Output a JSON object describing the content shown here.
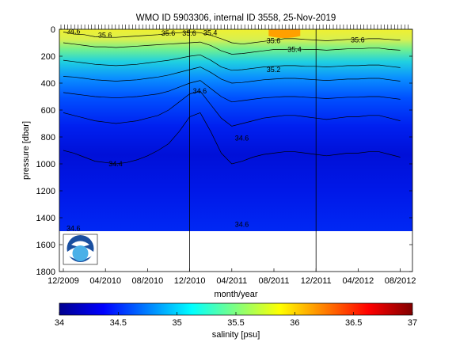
{
  "chart_data": {
    "type": "heatmap",
    "title": "WMO ID 5903306, internal ID 3558, 25-Nov-2019",
    "xlabel": "month/year",
    "ylabel": "pressure [dbar]",
    "x_ticks": [
      "12/2009",
      "04/2010",
      "08/2010",
      "12/2010",
      "04/2011",
      "08/2011",
      "12/2011",
      "04/2012",
      "08/2012"
    ],
    "y_ticks": [
      "0",
      "200",
      "400",
      "600",
      "800",
      "1000",
      "1200",
      "1400",
      "1600",
      "1800"
    ],
    "ylim": [
      0,
      1800
    ],
    "y_reversed": true,
    "max_profile_depth": 1500,
    "vertical_markers": [
      "12/2010",
      "12/2011"
    ],
    "colorbar": {
      "label": "salinity [psu]",
      "ticks": [
        "34",
        "34.5",
        "35",
        "35.5",
        "36",
        "36.5",
        "37"
      ],
      "range": [
        34,
        37
      ]
    },
    "contour_labels": [
      {
        "text": "34.6",
        "date": "2009-12",
        "pressure": 15
      },
      {
        "text": "35.6",
        "date": "2010-03",
        "pressure": 45
      },
      {
        "text": "35.6",
        "date": "2010-09",
        "pressure": 30
      },
      {
        "text": "35.6",
        "date": "2010-11",
        "pressure": 30
      },
      {
        "text": "35.4",
        "date": "2011-01",
        "pressure": 25
      },
      {
        "text": "35.6",
        "date": "2011-07",
        "pressure": 85
      },
      {
        "text": "35.4",
        "date": "2011-09",
        "pressure": 150
      },
      {
        "text": "35.6",
        "date": "2012-03",
        "pressure": 80
      },
      {
        "text": "35.2",
        "date": "2011-07",
        "pressure": 300
      },
      {
        "text": "34.6",
        "date": "2010-12",
        "pressure": 460
      },
      {
        "text": "34.6",
        "date": "2011-04",
        "pressure": 810
      },
      {
        "text": "34.4",
        "date": "2010-04",
        "pressure": 1000
      },
      {
        "text": "34.6",
        "date": "2009-12",
        "pressure": 1480
      },
      {
        "text": "34.6",
        "date": "2011-04",
        "pressure": 1450
      }
    ],
    "isohalines": [
      {
        "level": 35.6,
        "pressure_by_month": [
          20,
          35,
          40,
          55,
          60,
          60,
          55,
          50,
          45,
          40,
          30,
          25,
          20,
          25,
          45,
          70,
          100,
          110,
          100,
          90,
          80,
          70,
          70,
          75,
          80,
          85,
          80,
          75,
          75,
          70,
          70,
          75,
          80
        ]
      },
      {
        "level": 35.4,
        "pressure_by_month": [
          100,
          110,
          120,
          130,
          130,
          135,
          130,
          125,
          120,
          115,
          110,
          105,
          100,
          95,
          120,
          160,
          185,
          180,
          170,
          160,
          150,
          150,
          145,
          150,
          150,
          155,
          150,
          145,
          145,
          140,
          140,
          150,
          155
        ]
      },
      {
        "level": 35.2,
        "pressure_by_month": [
          230,
          240,
          250,
          260,
          265,
          270,
          265,
          260,
          250,
          240,
          230,
          215,
          200,
          190,
          230,
          280,
          305,
          300,
          290,
          280,
          275,
          270,
          270,
          275,
          275,
          280,
          275,
          270,
          270,
          265,
          265,
          275,
          285
        ]
      },
      {
        "level": 35.0,
        "pressure_by_month": [
          350,
          355,
          365,
          375,
          380,
          385,
          380,
          375,
          365,
          355,
          340,
          320,
          300,
          280,
          320,
          370,
          400,
          395,
          385,
          375,
          370,
          365,
          365,
          370,
          375,
          380,
          375,
          370,
          370,
          365,
          365,
          375,
          385
        ]
      },
      {
        "level": 34.8,
        "pressure_by_month": [
          470,
          480,
          490,
          500,
          505,
          510,
          505,
          500,
          490,
          480,
          460,
          430,
          400,
          380,
          440,
          500,
          540,
          530,
          520,
          510,
          505,
          500,
          500,
          505,
          510,
          515,
          510,
          505,
          505,
          500,
          500,
          510,
          520
        ]
      },
      {
        "level": 34.6,
        "pressure_by_month": [
          620,
          640,
          660,
          680,
          690,
          700,
          690,
          680,
          660,
          640,
          600,
          540,
          480,
          460,
          560,
          660,
          720,
          700,
          680,
          660,
          650,
          640,
          640,
          650,
          660,
          670,
          660,
          650,
          650,
          640,
          640,
          660,
          680
        ]
      },
      {
        "level": 34.4,
        "pressure_by_month": [
          900,
          920,
          950,
          980,
          990,
          1000,
          990,
          970,
          940,
          900,
          850,
          760,
          650,
          620,
          760,
          920,
          1000,
          980,
          950,
          930,
          920,
          910,
          910,
          920,
          930,
          940,
          930,
          920,
          920,
          910,
          910,
          930,
          950
        ]
      }
    ]
  }
}
